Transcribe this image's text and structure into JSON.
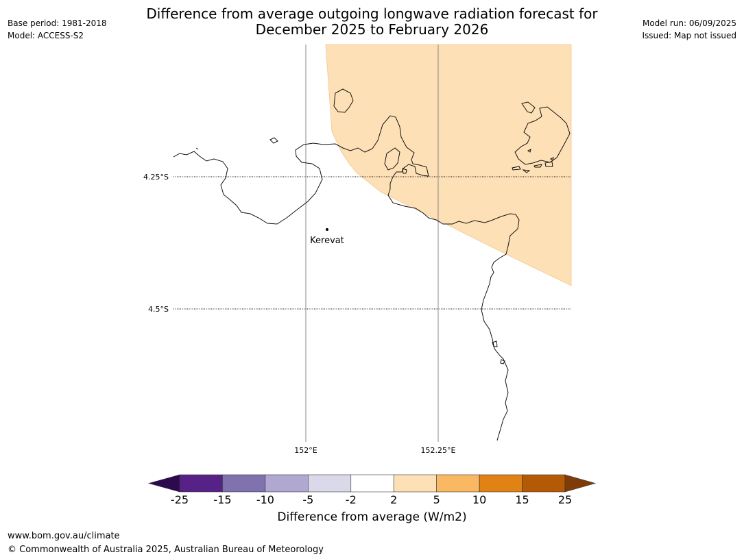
{
  "title_line1": "Difference from average outgoing longwave radiation forecast for",
  "title_line2": "December 2025 to February 2026",
  "base_period": "Base period: 1981-2018",
  "model": "Model: ACCESS-S2",
  "model_run": "Model run: 06/09/2025",
  "issued": "Issued: Map not issued",
  "lat_labels": [
    "4.25°S",
    "4.5°S"
  ],
  "lon_labels": [
    "152°E",
    "152.25°E"
  ],
  "place_label": "Kerevat",
  "colorbar": {
    "title": "Difference from average (W/m2)",
    "ticks": [
      "-25",
      "-15",
      "-10",
      "-5",
      "-2",
      "2",
      "5",
      "10",
      "15",
      "25"
    ],
    "colors": [
      "#2d0a4e",
      "#572287",
      "#8072ae",
      "#b0a8d1",
      "#d9d9ea",
      "#ffffff",
      "#fde0b6",
      "#fbb862",
      "#e08214",
      "#b45a07",
      "#7f3b08"
    ]
  },
  "footer_url": "www.bom.gov.au/climate",
  "footer_copyright": "© Commonwealth of Australia 2025, Australian Bureau of Meteorology"
}
